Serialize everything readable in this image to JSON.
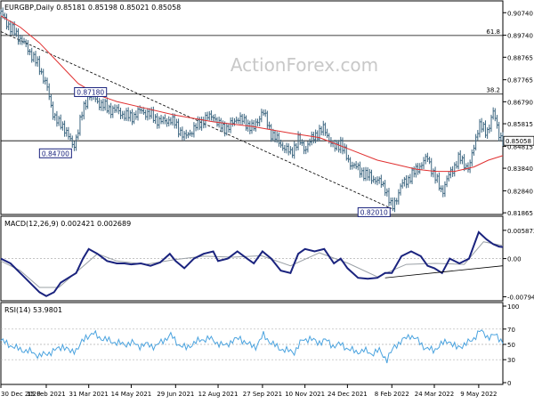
{
  "colors": {
    "price": "#3c6680",
    "ma": "#e03030",
    "macd": "#1a237e",
    "macd_signal": "#9aa0a6",
    "rsi": "#4aa3df",
    "trend": "#000000",
    "box_border": "#1a237e",
    "watermark": "#c8c8c8"
  },
  "watermark": "ActionForex.com",
  "chart_data": [
    {
      "type": "candlestick",
      "panel": "price",
      "title": "EURGBP,Daily  0.85181 0.85198 0.85021 0.85058",
      "y_ticks": [
        "0.90740",
        "0.89740",
        "0.88765",
        "0.87765",
        "0.86790",
        "0.85815",
        "0.84815",
        "0.83840",
        "0.82840",
        "0.81865"
      ],
      "ylim": [
        0.8187,
        0.9079
      ],
      "last_price_label": "0.85058",
      "x_tick_labels": [
        "30 Dec 2020",
        "15 Feb 2021",
        "31 Mar 2021",
        "14 May 2021",
        "29 Jun 2021",
        "12 Aug 2021",
        "27 Sep 2021",
        "10 Nov 2021",
        "24 Dec 2021",
        "8 Feb 2022",
        "24 Mar 2022",
        "9 May 2022"
      ],
      "x_ticks_days": [
        0,
        47,
        91,
        135,
        181,
        225,
        271,
        315,
        359,
        405,
        449,
        495
      ],
      "total_days": 520,
      "series": [
        {
          "name": "Price",
          "x_days": [
            0,
            10,
            20,
            30,
            40,
            47,
            53,
            60,
            67,
            75,
            83,
            91,
            100,
            110,
            120,
            128,
            135,
            145,
            155,
            165,
            175,
            181,
            190,
            200,
            210,
            220,
            225,
            235,
            245,
            255,
            262,
            271,
            280,
            290,
            300,
            308,
            315,
            325,
            335,
            345,
            352,
            359,
            370,
            380,
            390,
            398,
            405,
            415,
            425,
            435,
            442,
            449,
            457,
            465,
            475,
            485,
            495,
            503,
            510,
            516,
            520
          ],
          "values": [
            0.9072,
            0.9005,
            0.896,
            0.89,
            0.883,
            0.8755,
            0.864,
            0.858,
            0.856,
            0.847,
            0.861,
            0.8718,
            0.868,
            0.865,
            0.864,
            0.862,
            0.861,
            0.864,
            0.862,
            0.859,
            0.86,
            0.858,
            0.852,
            0.856,
            0.86,
            0.862,
            0.8575,
            0.856,
            0.861,
            0.858,
            0.856,
            0.864,
            0.854,
            0.849,
            0.845,
            0.851,
            0.847,
            0.853,
            0.856,
            0.847,
            0.85,
            0.842,
            0.838,
            0.835,
            0.833,
            0.83,
            0.8201,
            0.831,
            0.835,
            0.84,
            0.843,
            0.835,
            0.828,
            0.836,
            0.843,
            0.838,
            0.858,
            0.854,
            0.863,
            0.854,
            0.8506
          ]
        },
        {
          "name": "MA",
          "x_days": [
            0,
            20,
            40,
            60,
            80,
            100,
            120,
            150,
            180,
            220,
            260,
            300,
            330,
            360,
            390,
            410,
            430,
            450,
            470,
            490,
            505,
            520
          ],
          "values": [
            0.906,
            0.901,
            0.894,
            0.885,
            0.876,
            0.871,
            0.868,
            0.865,
            0.862,
            0.859,
            0.857,
            0.854,
            0.852,
            0.847,
            0.842,
            0.84,
            0.838,
            0.837,
            0.837,
            0.839,
            0.842,
            0.844
          ]
        }
      ],
      "levels": [
        {
          "label": "61.8",
          "value": 0.8973
        },
        {
          "label": "38.2",
          "value": 0.8713
        },
        {
          "label": "",
          "value": 0.8506
        }
      ],
      "trendline": {
        "x_days": [
          0,
          405
        ],
        "values": [
          0.899,
          0.8205
        ]
      },
      "annotations": [
        {
          "text": "0.87180",
          "x_day": 91,
          "value": 0.8718
        },
        {
          "text": "0.84700",
          "x_day": 75,
          "value": 0.847
        },
        {
          "text": "0.82010",
          "x_day": 405,
          "value": 0.8201
        }
      ]
    },
    {
      "type": "line",
      "panel": "macd",
      "title": "MACD(12,26,9) 0.002421 0.002689",
      "y_ticks": [
        "0.005872",
        "0.00",
        "-0.007945"
      ],
      "ylim": [
        -0.0084,
        0.0064
      ],
      "series": [
        {
          "name": "MACD",
          "x_days": [
            0,
            10,
            20,
            30,
            40,
            47,
            55,
            62,
            70,
            78,
            85,
            91,
            100,
            110,
            120,
            128,
            135,
            145,
            155,
            165,
            175,
            181,
            190,
            200,
            210,
            220,
            225,
            235,
            245,
            255,
            262,
            271,
            280,
            290,
            300,
            308,
            315,
            325,
            335,
            345,
            352,
            359,
            370,
            380,
            390,
            398,
            405,
            415,
            425,
            435,
            442,
            449,
            457,
            465,
            475,
            485,
            495,
            503,
            510,
            516,
            520
          ],
          "values": [
            0.0,
            -0.001,
            -0.003,
            -0.005,
            -0.007,
            -0.0078,
            -0.007,
            -0.005,
            -0.004,
            -0.003,
            0.0,
            0.002,
            0.001,
            -0.0005,
            -0.001,
            -0.001,
            -0.0012,
            -0.001,
            -0.0015,
            -0.0008,
            0.001,
            -0.0005,
            -0.002,
            0.0,
            0.001,
            0.0015,
            -0.0005,
            0.0,
            0.0015,
            0.0,
            -0.001,
            0.0015,
            0.0,
            -0.0025,
            -0.003,
            0.001,
            0.002,
            0.0015,
            0.002,
            -0.001,
            0.0,
            -0.002,
            -0.004,
            -0.0042,
            -0.004,
            -0.003,
            -0.003,
            0.0005,
            0.0015,
            0.0005,
            -0.0015,
            -0.002,
            -0.003,
            0.0,
            -0.001,
            0.0,
            0.0055,
            0.004,
            0.003,
            0.0025,
            0.0024
          ]
        },
        {
          "name": "Signal",
          "x_days": [
            0,
            20,
            40,
            60,
            80,
            100,
            120,
            150,
            180,
            210,
            240,
            270,
            300,
            330,
            360,
            390,
            420,
            450,
            480,
            500,
            520
          ],
          "values": [
            -0.0005,
            -0.0025,
            -0.006,
            -0.006,
            -0.0025,
            0.001,
            -0.0005,
            -0.0012,
            -0.0002,
            0.0005,
            0.0003,
            0.0006,
            -0.0015,
            0.0012,
            -0.001,
            -0.0038,
            -0.0012,
            -0.001,
            -0.0012,
            0.0035,
            0.0027
          ]
        }
      ],
      "trendline": {
        "x_days": [
          398,
          520
        ],
        "values": [
          -0.004,
          -0.0015
        ]
      }
    },
    {
      "type": "line",
      "panel": "rsi",
      "title": "RSI(14) 53.9801",
      "y_ticks": [
        "100",
        "70",
        "50",
        "30",
        "0"
      ],
      "ylim": [
        0,
        100
      ],
      "series": [
        {
          "name": "RSI",
          "x_days": [
            0,
            8,
            16,
            24,
            32,
            40,
            48,
            56,
            64,
            72,
            80,
            88,
            96,
            104,
            112,
            120,
            128,
            136,
            144,
            152,
            160,
            168,
            176,
            184,
            192,
            200,
            208,
            216,
            224,
            232,
            240,
            248,
            256,
            264,
            272,
            280,
            288,
            296,
            304,
            312,
            320,
            328,
            336,
            344,
            352,
            360,
            368,
            376,
            384,
            392,
            400,
            408,
            416,
            424,
            432,
            440,
            448,
            456,
            464,
            472,
            480,
            488,
            496,
            504,
            512,
            520
          ],
          "values": [
            55,
            50,
            45,
            42,
            40,
            35,
            38,
            42,
            48,
            40,
            45,
            60,
            64,
            58,
            55,
            52,
            50,
            52,
            48,
            50,
            47,
            55,
            62,
            50,
            45,
            52,
            56,
            58,
            52,
            48,
            55,
            58,
            50,
            47,
            62,
            52,
            45,
            42,
            40,
            55,
            58,
            52,
            56,
            48,
            50,
            44,
            40,
            42,
            38,
            42,
            30,
            48,
            55,
            62,
            55,
            45,
            42,
            50,
            55,
            45,
            50,
            55,
            68,
            60,
            62,
            54
          ]
        }
      ],
      "levels": [
        70,
        50,
        30
      ]
    }
  ]
}
